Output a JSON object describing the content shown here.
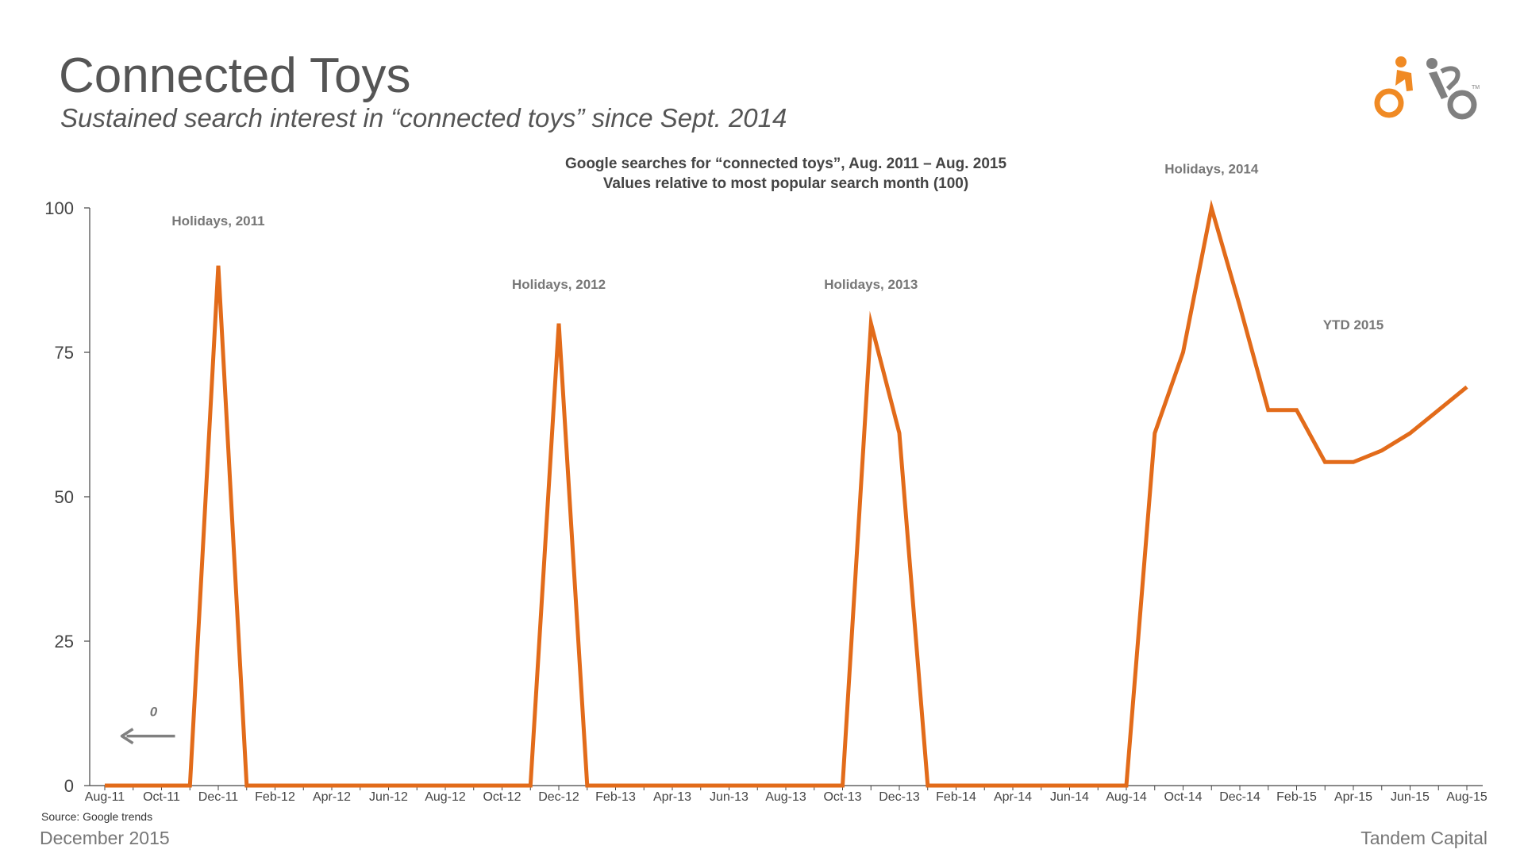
{
  "slide": {
    "title": "Connected Toys",
    "subtitle": "Sustained search interest in “connected toys” since Sept. 2014",
    "source": "Source: Google trends",
    "date": "December 2015",
    "company": "Tandem Capital",
    "logo_tm": "TM",
    "colors": {
      "accent": "#E26B1A",
      "logo_orange": "#F08A24",
      "logo_gray": "#808080",
      "text": "#555555",
      "annotation": "#777777"
    }
  },
  "chart_data": {
    "type": "line",
    "title": "Google searches for “connected toys”, Aug. 2011 – Aug. 2015",
    "subtitle": "Values relative to most popular search month (100)",
    "xlabel": "",
    "ylabel": "",
    "ylim": [
      0,
      100
    ],
    "yticks": [
      0,
      25,
      50,
      75,
      100
    ],
    "grid": false,
    "x": [
      "Aug-11",
      "Sep-11",
      "Oct-11",
      "Nov-11",
      "Dec-11",
      "Jan-12",
      "Feb-12",
      "Mar-12",
      "Apr-12",
      "May-12",
      "Jun-12",
      "Jul-12",
      "Aug-12",
      "Sep-12",
      "Oct-12",
      "Nov-12",
      "Dec-12",
      "Jan-13",
      "Feb-13",
      "Mar-13",
      "Apr-13",
      "May-13",
      "Jun-13",
      "Jul-13",
      "Aug-13",
      "Sep-13",
      "Oct-13",
      "Nov-13",
      "Dec-13",
      "Jan-14",
      "Feb-14",
      "Mar-14",
      "Apr-14",
      "May-14",
      "Jun-14",
      "Jul-14",
      "Aug-14",
      "Sep-14",
      "Oct-14",
      "Nov-14",
      "Dec-14",
      "Jan-15",
      "Feb-15",
      "Mar-15",
      "Apr-15",
      "May-15",
      "Jun-15",
      "Jul-15",
      "Aug-15"
    ],
    "tick_labels": [
      "Aug-11",
      "Oct-11",
      "Dec-11",
      "Feb-12",
      "Apr-12",
      "Jun-12",
      "Aug-12",
      "Oct-12",
      "Dec-12",
      "Feb-13",
      "Apr-13",
      "Jun-13",
      "Aug-13",
      "Oct-13",
      "Dec-13",
      "Feb-14",
      "Apr-14",
      "Jun-14",
      "Aug-14",
      "Oct-14",
      "Dec-14",
      "Feb-15",
      "Apr-15",
      "Jun-15",
      "Aug-15"
    ],
    "series": [
      {
        "values": [
          0,
          0,
          0,
          0,
          90,
          0,
          0,
          0,
          0,
          0,
          0,
          0,
          0,
          0,
          0,
          0,
          80,
          0,
          0,
          0,
          0,
          0,
          0,
          0,
          0,
          0,
          0,
          80,
          61,
          0,
          0,
          0,
          0,
          0,
          0,
          0,
          0,
          61,
          75,
          100,
          83,
          65,
          65,
          56,
          56,
          58,
          61,
          65,
          69
        ]
      }
    ],
    "annotations": [
      {
        "text": "Holidays, 2011",
        "x": "Dec-11",
        "y": 97
      },
      {
        "text": "Holidays, 2012",
        "x": "Dec-12",
        "y": 86
      },
      {
        "text": "Holidays, 2013",
        "x": "Nov-13",
        "y": 86
      },
      {
        "text": "Holidays, 2014",
        "x": "Nov-14",
        "y": 106
      },
      {
        "text": "YTD 2015",
        "x": "Apr-15",
        "y": 79
      }
    ],
    "zero_marker": {
      "text": "0",
      "x": "Oct-11",
      "y": 12
    }
  }
}
